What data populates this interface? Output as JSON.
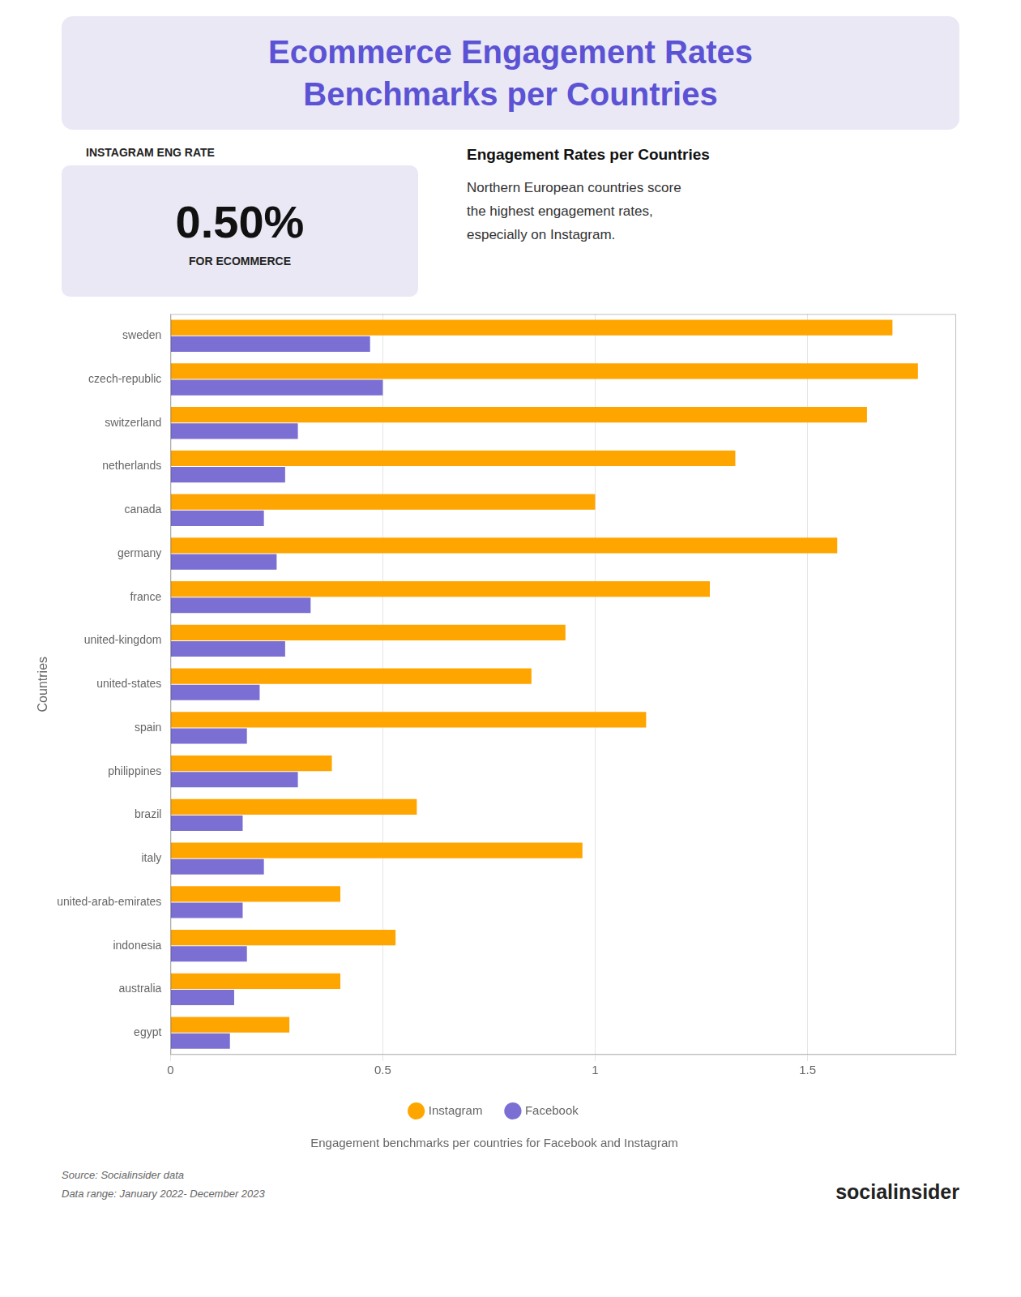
{
  "chart_data": {
    "type": "bar",
    "orientation": "horizontal",
    "title": [
      "Ecommerce Engagement Rates",
      "Benchmarks per Countries"
    ],
    "subtitle": "Engagement benchmarks per countries for Facebook and Instagram",
    "ylabel": "Countries",
    "categories": [
      "sweden",
      "czech-republic",
      "switzerland",
      "netherlands",
      "canada",
      "germany",
      "france",
      "united-kingdom",
      "united-states",
      "spain",
      "philippines",
      "brazil",
      "italy",
      "united-arab-emirates",
      "indonesia",
      "australia",
      "egypt"
    ],
    "series": [
      {
        "name": "Instagram",
        "color": "#FFA500",
        "values": [
          1.7,
          1.76,
          1.64,
          1.33,
          1.0,
          1.57,
          1.27,
          0.93,
          0.85,
          1.12,
          0.38,
          0.58,
          0.97,
          0.4,
          0.53,
          0.4,
          0.28
        ]
      },
      {
        "name": "Facebook",
        "color": "#7B6FD4",
        "values": [
          0.47,
          0.5,
          0.3,
          0.27,
          0.22,
          0.25,
          0.33,
          0.27,
          0.21,
          0.18,
          0.3,
          0.17,
          0.22,
          0.17,
          0.18,
          0.15,
          0.14
        ]
      }
    ],
    "xlim": [
      0,
      1.85
    ],
    "xticks": [
      0,
      0.5,
      1,
      1.5
    ],
    "grid": true,
    "legend": "bottom",
    "annotations": [
      "INSTAGRAM ENG RATE",
      "0.50%",
      "FOR ECOMMERCE",
      "Engagement Rates per Countries",
      "Northern European countries score\nthe highest engagement rates,\nespecially on Instagram.",
      "Source: Socialinsider data\nData range: January 2022- December 2023",
      "socialinsider"
    ]
  }
}
